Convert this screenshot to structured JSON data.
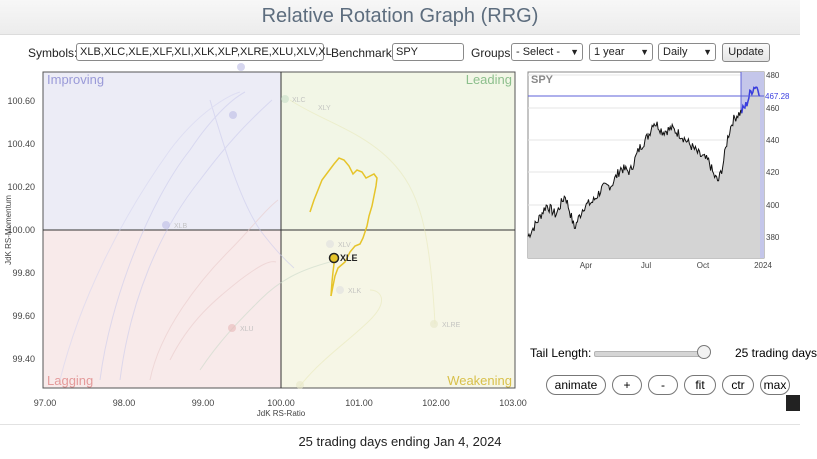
{
  "page": {
    "title": "Relative Rotation Graph (RRG)"
  },
  "controls": {
    "symbols_label": "Symbols:",
    "symbols_value": "XLB,XLC,XLE,XLF,XLI,XLK,XLP,XLRE,XLU,XLV,XL",
    "benchmark_label": "Benchmark:",
    "benchmark_value": "SPY",
    "groups_label": "Groups:",
    "groups_value": "- Select -",
    "period_value": "1 year",
    "interval_value": "Daily",
    "update_label": "Update"
  },
  "rrg": {
    "quadrants": {
      "improving": "Improving",
      "leading": "Leading",
      "lagging": "Lagging",
      "weakening": "Weakening"
    },
    "y_axis_label": "JdK RS-Momentum",
    "x_axis_label": "JdK RS-Ratio",
    "x_ticks": [
      "97.00",
      "98.00",
      "99.00",
      "100.00",
      "101.00",
      "102.00",
      "103.00"
    ],
    "y_ticks": [
      "100.60",
      "100.40",
      "100.20",
      "100.00",
      "99.80",
      "99.60",
      "99.40"
    ],
    "highlighted_symbol": "XLE",
    "faded_symbols": [
      "XLC",
      "XLY",
      "XLB",
      "XLU",
      "XLV",
      "XLK",
      "XLRE"
    ],
    "colors": {
      "improving": "#ececf6",
      "leading": "#f2f6e6",
      "lagging": "#f8eaea",
      "weakening": "#f6f6e6",
      "highlight_tail": "#e6c42a"
    }
  },
  "spy_chart": {
    "label": "SPY",
    "x_ticks": [
      "Apr",
      "Jul",
      "Oct",
      "2024"
    ],
    "y_ticks": [
      "480",
      "460",
      "440",
      "420",
      "400",
      "380"
    ],
    "last_price": "467.28",
    "y_range": [
      370,
      482
    ]
  },
  "tail": {
    "label": "Tail Length:",
    "value": "25 trading days",
    "slider_fraction": 0.92
  },
  "buttons": {
    "animate": "animate",
    "plus": "+",
    "minus": "-",
    "fit": "fit",
    "ctr": "ctr",
    "max": "max"
  },
  "footer": {
    "text": "25 trading days ending Jan 4, 2024"
  }
}
